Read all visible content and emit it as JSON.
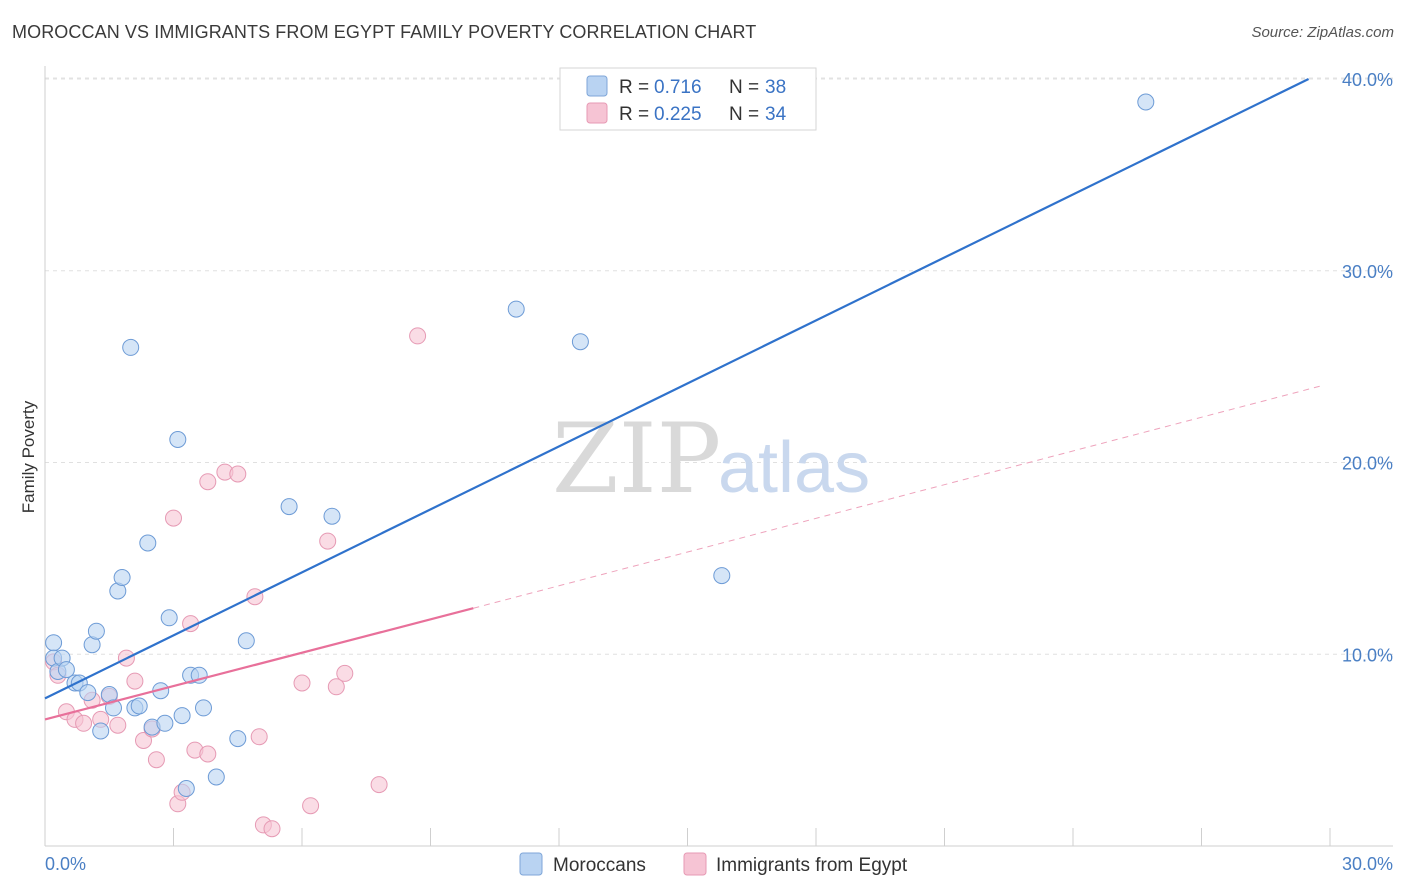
{
  "title": "MOROCCAN VS IMMIGRANTS FROM EGYPT FAMILY POVERTY CORRELATION CHART",
  "source": "Source: ZipAtlas.com",
  "colors": {
    "blue": "#4a7fc4",
    "blue_fill": "#b9d3f2",
    "blue_line": "#2f72cc",
    "pink": "#e8709a",
    "pink_fill": "#f6c4d4",
    "grid": "#dddddd"
  },
  "legend": {
    "rows": [
      {
        "r_label": "R =",
        "r_value": "0.716",
        "n_label": "N =",
        "n_value": "38"
      },
      {
        "r_label": "R =",
        "r_value": "0.225",
        "n_label": "N =",
        "n_value": "34"
      }
    ]
  },
  "watermark": {
    "zip": "ZIP",
    "atlas": "atlas"
  },
  "chart_data": {
    "type": "scatter",
    "title": "MOROCCAN VS IMMIGRANTS FROM EGYPT FAMILY POVERTY CORRELATION CHART",
    "xlabel": "",
    "ylabel": "Family Poverty",
    "xlim": [
      0,
      30
    ],
    "ylim": [
      0,
      40
    ],
    "x_tick_labels": [
      "0.0%",
      "30.0%"
    ],
    "y_ticks": [
      10,
      20,
      30,
      40
    ],
    "y_tick_labels": [
      "10.0%",
      "20.0%",
      "30.0%",
      "40.0%"
    ],
    "legend_position": "bottom-center",
    "series": [
      {
        "name": "Moroccans",
        "color": "#4a7fc4",
        "points": [
          [
            0.2,
            10.6
          ],
          [
            0.2,
            9.8
          ],
          [
            0.3,
            9.1
          ],
          [
            0.4,
            9.8
          ],
          [
            0.5,
            9.2
          ],
          [
            0.7,
            8.5
          ],
          [
            0.8,
            8.5
          ],
          [
            1.0,
            8.0
          ],
          [
            1.1,
            10.5
          ],
          [
            1.2,
            11.2
          ],
          [
            1.3,
            6.0
          ],
          [
            1.5,
            7.9
          ],
          [
            1.6,
            7.2
          ],
          [
            1.7,
            13.3
          ],
          [
            1.8,
            14.0
          ],
          [
            2.0,
            26.0
          ],
          [
            2.1,
            7.2
          ],
          [
            2.2,
            7.3
          ],
          [
            2.4,
            15.8
          ],
          [
            2.5,
            6.2
          ],
          [
            2.7,
            8.1
          ],
          [
            2.8,
            6.4
          ],
          [
            2.9,
            11.9
          ],
          [
            3.1,
            21.2
          ],
          [
            3.2,
            6.8
          ],
          [
            3.3,
            3.0
          ],
          [
            3.4,
            8.9
          ],
          [
            3.6,
            8.9
          ],
          [
            3.7,
            7.2
          ],
          [
            4.0,
            3.6
          ],
          [
            4.5,
            5.6
          ],
          [
            4.7,
            10.7
          ],
          [
            5.7,
            17.7
          ],
          [
            6.7,
            17.2
          ],
          [
            11.0,
            28.0
          ],
          [
            12.5,
            26.3
          ],
          [
            15.8,
            14.1
          ],
          [
            25.7,
            38.8
          ]
        ],
        "trend": {
          "x": [
            0,
            29.5
          ],
          "y": [
            7.7,
            40.0
          ],
          "style": "solid"
        }
      },
      {
        "name": "Immigrants from Egypt",
        "color": "#e8709a",
        "points": [
          [
            0.2,
            9.6
          ],
          [
            0.3,
            8.9
          ],
          [
            0.5,
            7.0
          ],
          [
            0.7,
            6.6
          ],
          [
            0.9,
            6.4
          ],
          [
            1.1,
            7.6
          ],
          [
            1.3,
            6.6
          ],
          [
            1.5,
            7.8
          ],
          [
            1.7,
            6.3
          ],
          [
            1.9,
            9.8
          ],
          [
            2.1,
            8.6
          ],
          [
            2.3,
            5.5
          ],
          [
            2.5,
            6.1
          ],
          [
            2.6,
            4.5
          ],
          [
            3.0,
            17.1
          ],
          [
            3.1,
            2.2
          ],
          [
            3.2,
            2.8
          ],
          [
            3.4,
            11.6
          ],
          [
            3.5,
            5.0
          ],
          [
            3.8,
            4.8
          ],
          [
            3.8,
            19.0
          ],
          [
            4.2,
            19.5
          ],
          [
            4.5,
            19.4
          ],
          [
            4.9,
            13.0
          ],
          [
            5.0,
            5.7
          ],
          [
            5.1,
            1.1
          ],
          [
            5.3,
            0.9
          ],
          [
            6.0,
            8.5
          ],
          [
            6.2,
            2.1
          ],
          [
            6.6,
            15.9
          ],
          [
            6.8,
            8.3
          ],
          [
            7.0,
            9.0
          ],
          [
            7.8,
            3.2
          ],
          [
            8.7,
            26.6
          ]
        ],
        "trend": {
          "x": [
            0,
            10
          ],
          "y": [
            6.6,
            12.4
          ],
          "style": "solid"
        },
        "trend_extension": {
          "x": [
            10,
            29.8
          ],
          "y": [
            12.4,
            24.0
          ],
          "style": "dashed"
        }
      }
    ]
  }
}
